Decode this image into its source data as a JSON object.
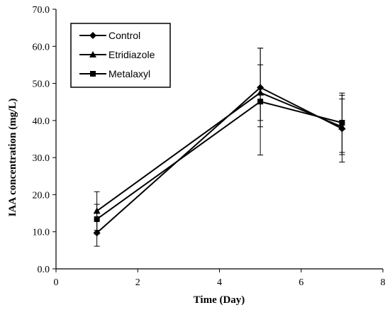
{
  "chart_data": {
    "type": "line",
    "title": "",
    "xlabel": "Time (Day)",
    "ylabel": "IAA concentration (mg/L)",
    "xlim": [
      0,
      8
    ],
    "ylim": [
      0,
      70
    ],
    "xticks": [
      "0",
      "2",
      "4",
      "6",
      "8"
    ],
    "yticks": [
      "0.0",
      "10.0",
      "20.0",
      "30.0",
      "40.0",
      "50.0",
      "60.0",
      "70.0"
    ],
    "grid": false,
    "legend_position": "top-left",
    "x": [
      1,
      5,
      7
    ],
    "series": [
      {
        "name": "Control",
        "marker": "diamond",
        "values": [
          9.7,
          48.9,
          37.8
        ],
        "error": [
          3.6,
          10.6,
          9.0
        ]
      },
      {
        "name": "Etridiazole",
        "marker": "triangle",
        "values": [
          15.6,
          47.5,
          38.3
        ],
        "error": [
          5.2,
          7.5,
          7.5
        ]
      },
      {
        "name": "Metalaxyl",
        "marker": "square",
        "values": [
          13.4,
          45.1,
          39.4
        ],
        "error": [
          4.0,
          14.4,
          8.0
        ]
      }
    ]
  },
  "colors": {
    "line": "#000000",
    "background": "#ffffff"
  }
}
